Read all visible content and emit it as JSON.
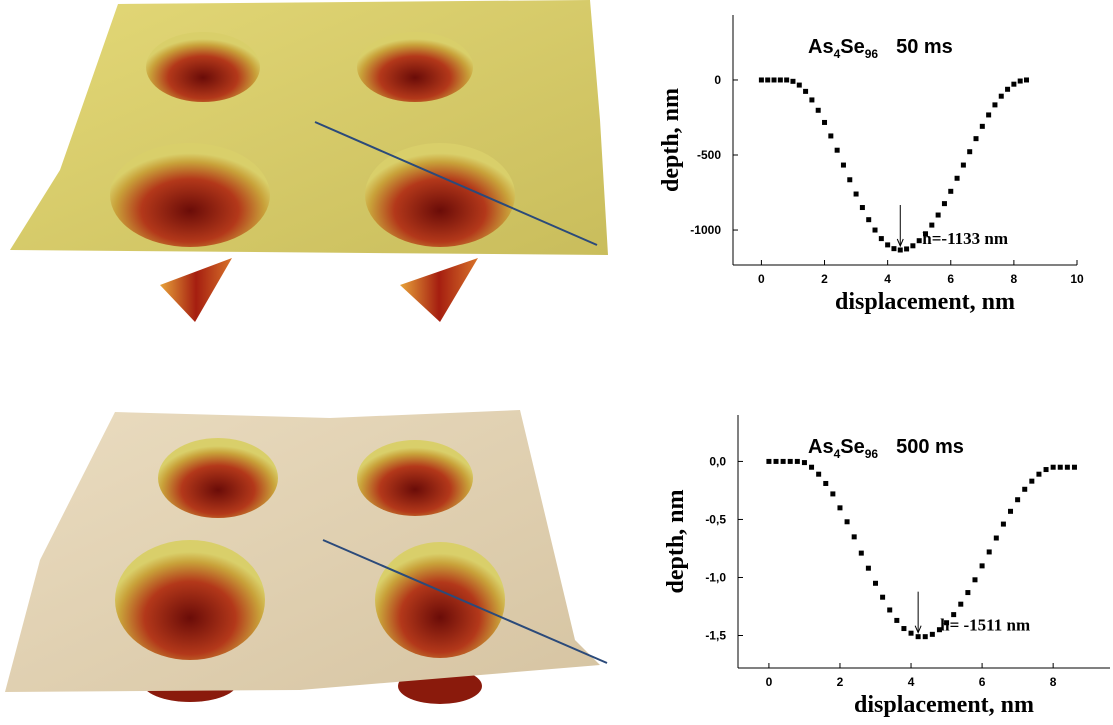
{
  "chart_data": [
    {
      "type": "scatter",
      "title_parts": [
        "As",
        "4",
        "Se",
        "96",
        "50 ms"
      ],
      "x_label": "displacement, nm",
      "y_label": "depth, nm",
      "annotation": "h=-1133 nm",
      "color": "#000000",
      "x": [
        0,
        0.2,
        0.4,
        0.6,
        0.8,
        1.0,
        1.2,
        1.4,
        1.6,
        1.8,
        2.0,
        2.2,
        2.4,
        2.6,
        2.8,
        3.0,
        3.2,
        3.4,
        3.6,
        3.8,
        4.0,
        4.2,
        4.4,
        4.6,
        4.8,
        5.0,
        5.2,
        5.4,
        5.6,
        5.8,
        6.0,
        6.2,
        6.4,
        6.6,
        6.8,
        7.0,
        7.2,
        7.4,
        7.6,
        7.8,
        8.0,
        8.2,
        8.4
      ],
      "values": [
        0,
        0,
        0,
        0,
        0,
        -9,
        -34,
        -76,
        -133,
        -202,
        -283,
        -373,
        -468,
        -567,
        -665,
        -760,
        -850,
        -931,
        -1000,
        -1057,
        -1099,
        -1124,
        -1133,
        -1126,
        -1105,
        -1071,
        -1025,
        -967,
        -900,
        -824,
        -742,
        -655,
        -567,
        -478,
        -391,
        -309,
        -233,
        -166,
        -108,
        -62,
        -28,
        -7,
        0
      ],
      "xlim": [
        -0.9,
        10
      ],
      "xticks": [
        0,
        2,
        4,
        6,
        8,
        10
      ],
      "ylim": [
        -1233,
        433
      ],
      "yticks": [
        0,
        -500,
        -1000
      ]
    },
    {
      "type": "scatter",
      "title_parts": [
        "As",
        "4",
        "Se",
        "96",
        "500 ms"
      ],
      "x_label": "displacement, nm",
      "y_label": "depth, nm",
      "annotation": "h= -1511 nm",
      "color": "#000000",
      "x": [
        0,
        0.2,
        0.4,
        0.6,
        0.8,
        1.0,
        1.2,
        1.4,
        1.6,
        1.8,
        2.0,
        2.2,
        2.4,
        2.6,
        2.8,
        3.0,
        3.2,
        3.4,
        3.6,
        3.8,
        4.0,
        4.2,
        4.4,
        4.6,
        4.8,
        5.0,
        5.2,
        5.4,
        5.6,
        5.8,
        6.0,
        6.2,
        6.4,
        6.6,
        6.8,
        7.0,
        7.2,
        7.4,
        7.6,
        7.8,
        8.0,
        8.2,
        8.4,
        8.6
      ],
      "values": [
        0,
        0,
        0,
        0,
        0,
        -0.01,
        -0.05,
        -0.11,
        -0.19,
        -0.28,
        -0.4,
        -0.52,
        -0.65,
        -0.79,
        -0.92,
        -1.05,
        -1.17,
        -1.28,
        -1.37,
        -1.44,
        -1.48,
        -1.51,
        -1.51,
        -1.49,
        -1.45,
        -1.39,
        -1.32,
        -1.23,
        -1.13,
        -1.02,
        -0.9,
        -0.78,
        -0.66,
        -0.54,
        -0.43,
        -0.33,
        -0.24,
        -0.17,
        -0.11,
        -0.07,
        -0.05,
        -0.05,
        -0.05,
        -0.05
      ],
      "xlim": [
        -0.87,
        9.6
      ],
      "xticks": [
        0,
        2,
        4,
        6,
        8
      ],
      "ylim": [
        -1.78,
        0.4
      ],
      "yticks": [
        {
          "value": 0,
          "label": "0,0"
        },
        {
          "value": -0.5,
          "label": "-0,5"
        },
        {
          "value": -1,
          "label": "-1,0"
        },
        {
          "value": -1.5,
          "label": "-1,5"
        }
      ]
    }
  ]
}
